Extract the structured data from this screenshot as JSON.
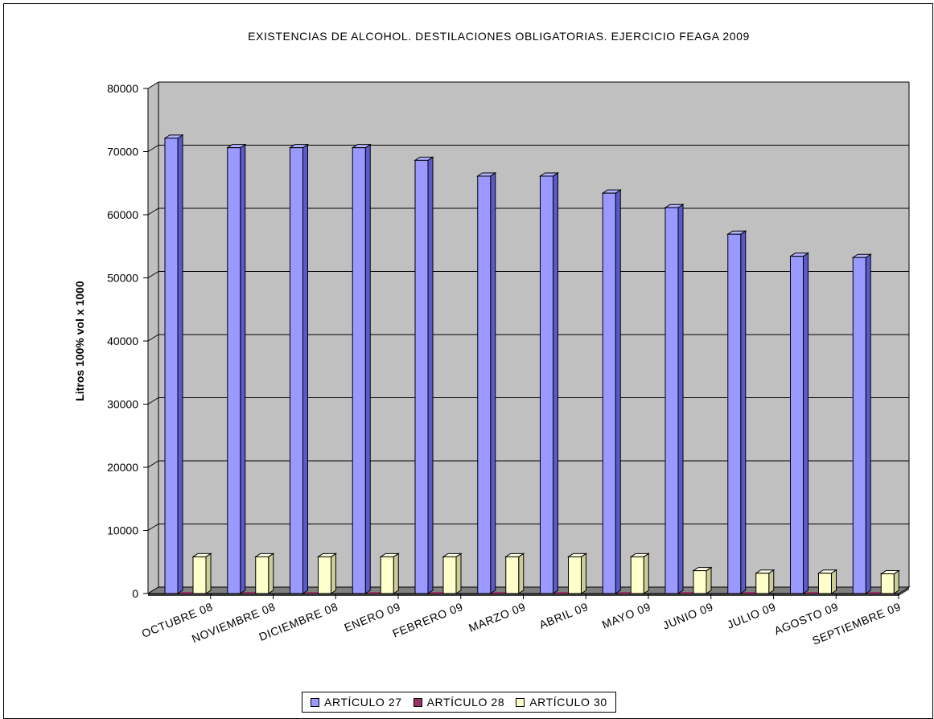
{
  "chart_data": {
    "type": "bar",
    "title": "EXISTENCIAS DE ALCOHOL. DESTILACIONES OBLIGATORIAS. EJERCICIO FEAGA 2009",
    "ylabel": "Litros 100% vol x 1000",
    "xlabel": "",
    "ylim": [
      0,
      80000
    ],
    "yticks": [
      0,
      10000,
      20000,
      30000,
      40000,
      50000,
      60000,
      70000,
      80000
    ],
    "grid": true,
    "legend_position": "bottom",
    "three_d": true,
    "categories": [
      "OCTUBRE 08",
      "NOVIEMBRE 08",
      "DICIEMBRE 08",
      "ENERO 09",
      "FEBRERO 09",
      "MARZO 09",
      "ABRIL 09",
      "MAYO 09",
      "JUNIO 09",
      "JULIO 09",
      "AGOSTO 09",
      "SEPTIEMBRE 09"
    ],
    "series": [
      {
        "name": "ARTÍCULO 27",
        "color": "#9999ff",
        "values": [
          72500,
          71000,
          71000,
          71000,
          69000,
          66500,
          66500,
          63800,
          61500,
          57300,
          53800,
          53600
        ]
      },
      {
        "name": "ARTÍCULO 28",
        "color": "#993366",
        "values": [
          0,
          0,
          0,
          0,
          0,
          0,
          0,
          0,
          0,
          0,
          0,
          0
        ]
      },
      {
        "name": "ARTÍCULO 30",
        "color": "#ffffcc",
        "values": [
          6200,
          6200,
          6200,
          6200,
          6200,
          6200,
          6200,
          6200,
          4000,
          3600,
          3600,
          3500
        ]
      }
    ]
  }
}
